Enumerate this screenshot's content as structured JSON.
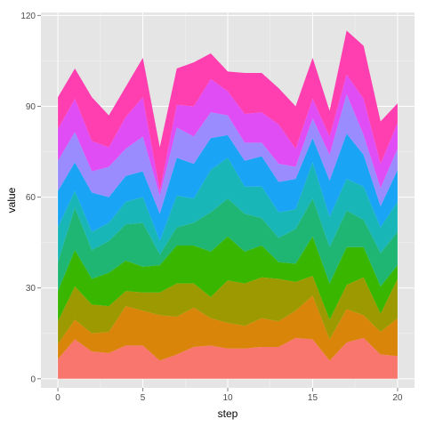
{
  "chart_data": {
    "type": "area",
    "stacked": true,
    "title": "",
    "xlabel": "step",
    "ylabel": "value",
    "xlim": [
      -1,
      21
    ],
    "ylim": [
      -3,
      121
    ],
    "x_ticks": [
      0,
      5,
      10,
      15,
      20
    ],
    "y_ticks": [
      0,
      30,
      60,
      90,
      120
    ],
    "grid": true,
    "legend": "none",
    "panel_background": "#e5e5e5",
    "x": [
      0,
      1,
      2,
      3,
      4,
      5,
      6,
      7,
      8,
      9,
      10,
      11,
      12,
      13,
      14,
      15,
      16,
      17,
      18,
      19,
      20
    ],
    "series": [
      {
        "color": "#f8766d",
        "values": [
          6.5,
          13.0,
          9.0,
          8.5,
          11.0,
          11.0,
          6.0,
          8.0,
          10.5,
          11.0,
          10.0,
          10.0,
          10.5,
          10.5,
          13.5,
          13.0,
          6.0,
          12.0,
          13.5,
          8.0,
          7.5
        ]
      },
      {
        "color": "#d9850a",
        "values": [
          5.0,
          6.5,
          6.0,
          7.0,
          13.0,
          11.5,
          15.0,
          12.5,
          13.0,
          9.0,
          8.5,
          7.5,
          9.5,
          8.5,
          9.0,
          14.5,
          7.0,
          11.0,
          7.5,
          7.5,
          12.5
        ]
      },
      {
        "color": "#9c9a00",
        "values": [
          7.5,
          11.0,
          9.5,
          8.5,
          5.0,
          6.0,
          7.5,
          11.0,
          8.0,
          7.0,
          14.0,
          14.0,
          13.5,
          14.0,
          9.5,
          6.5,
          6.5,
          8.0,
          12.5,
          6.0,
          13.0
        ]
      },
      {
        "color": "#39b600",
        "values": [
          10.0,
          12.0,
          8.5,
          11.0,
          10.0,
          8.5,
          9.0,
          12.5,
          12.5,
          15.0,
          14.5,
          10.5,
          10.5,
          5.5,
          6.0,
          13.0,
          12.0,
          12.5,
          10.0,
          9.0,
          4.5
        ]
      },
      {
        "color": "#1fb573",
        "values": [
          9.5,
          14.0,
          9.5,
          10.5,
          12.0,
          14.5,
          3.5,
          6.0,
          7.5,
          13.0,
          12.5,
          12.5,
          9.0,
          8.0,
          11.5,
          12.5,
          12.0,
          12.0,
          9.0,
          11.0,
          11.0
        ]
      },
      {
        "color": "#19b6b8",
        "values": [
          11.5,
          5.5,
          6.0,
          6.0,
          7.5,
          8.5,
          4.5,
          10.5,
          8.0,
          14.0,
          13.5,
          9.0,
          10.5,
          8.5,
          6.5,
          12.0,
          10.0,
          10.5,
          11.0,
          8.5,
          10.0
        ]
      },
      {
        "color": "#1aa4f5",
        "values": [
          12.0,
          9.5,
          13.0,
          8.5,
          8.5,
          8.5,
          9.0,
          12.5,
          11.5,
          10.5,
          7.5,
          8.5,
          10.0,
          10.0,
          10.0,
          8.0,
          12.0,
          15.0,
          10.5,
          7.0,
          10.5
        ]
      },
      {
        "color": "#9a8cff",
        "values": [
          10.0,
          10.0,
          7.0,
          10.0,
          9.0,
          11.5,
          6.0,
          10.0,
          9.0,
          8.5,
          6.5,
          6.0,
          4.5,
          6.0,
          4.0,
          6.5,
          8.5,
          13.0,
          6.5,
          6.0,
          7.0
        ]
      },
      {
        "color": "#e14df5",
        "values": [
          10.5,
          11.0,
          10.0,
          6.5,
          10.5,
          13.0,
          1.5,
          7.5,
          10.0,
          11.0,
          8.0,
          9.5,
          10.0,
          13.0,
          6.0,
          6.5,
          6.0,
          6.5,
          12.0,
          8.0,
          8.5
        ]
      },
      {
        "color": "#ff3fb0",
        "values": [
          10.5,
          10.0,
          14.5,
          10.5,
          10.0,
          13.0,
          14.5,
          12.0,
          14.5,
          8.5,
          6.5,
          13.5,
          13.0,
          12.0,
          14.0,
          13.5,
          8.5,
          14.5,
          17.5,
          14.0,
          6.5
        ]
      }
    ]
  }
}
